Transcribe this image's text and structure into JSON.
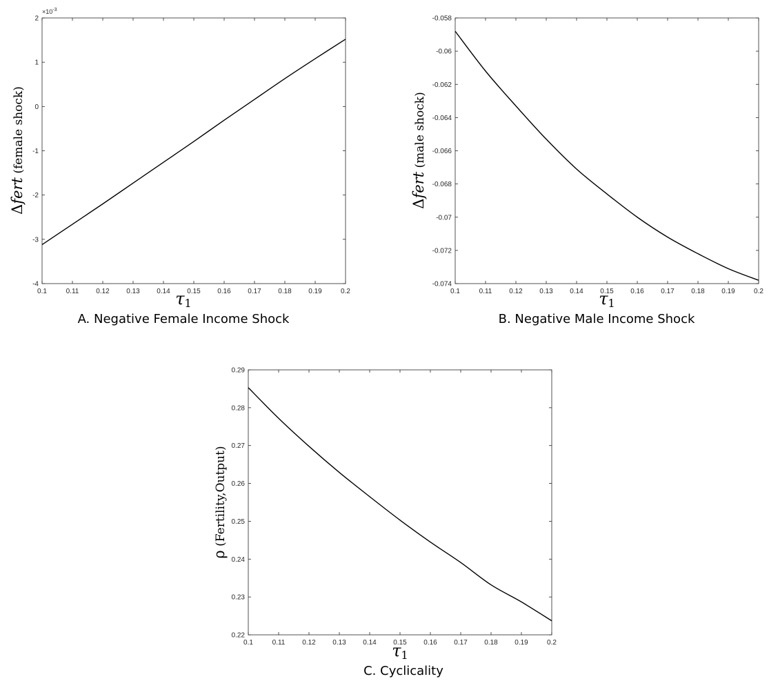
{
  "chart_data": [
    {
      "id": "A",
      "type": "line",
      "caption": "A. Negative Female Income Shock",
      "ylabel_symbol": "Δ",
      "ylabel_var": "fert",
      "ylabel_text": " (female shock)",
      "xlabel_symbol": "τ",
      "xlabel_sub": "1",
      "y_multiplier": "×10",
      "y_multiplier_exp": "-3",
      "xlim": [
        0.1,
        0.2
      ],
      "ylim": [
        -4,
        2
      ],
      "xticks": [
        0.1,
        0.11,
        0.12,
        0.13,
        0.14,
        0.15,
        0.16,
        0.17,
        0.18,
        0.19,
        0.2
      ],
      "xtick_labels": [
        "0.1",
        "0.11",
        "0.12",
        "0.13",
        "0.14",
        "0.15",
        "0.16",
        "0.17",
        "0.18",
        "0.19",
        "0.2"
      ],
      "yticks": [
        -4,
        -3,
        -2,
        -1,
        0,
        1,
        2
      ],
      "ytick_labels": [
        "-4",
        "-3",
        "-2",
        "-1",
        "0",
        "1",
        "2"
      ],
      "x": [
        0.1,
        0.11,
        0.12,
        0.13,
        0.14,
        0.15,
        0.16,
        0.17,
        0.18,
        0.19,
        0.2
      ],
      "y": [
        -3.12,
        -2.66,
        -2.2,
        -1.73,
        -1.26,
        -0.79,
        -0.31,
        0.16,
        0.63,
        1.08,
        1.52
      ],
      "color": "#000000"
    },
    {
      "id": "B",
      "type": "line",
      "caption": "B. Negative Male Income Shock",
      "ylabel_symbol": "Δ",
      "ylabel_var": "fert",
      "ylabel_text": " (male shock)",
      "xlabel_symbol": "τ",
      "xlabel_sub": "1",
      "xlim": [
        0.1,
        0.2
      ],
      "ylim": [
        -0.074,
        -0.058
      ],
      "xticks": [
        0.1,
        0.11,
        0.12,
        0.13,
        0.14,
        0.15,
        0.16,
        0.17,
        0.18,
        0.19,
        0.2
      ],
      "xtick_labels": [
        "0.1",
        "0.11",
        "0.12",
        "0.13",
        "0.14",
        "0.15",
        "0.16",
        "0.17",
        "0.18",
        "0.19",
        "0.2"
      ],
      "yticks": [
        -0.074,
        -0.072,
        -0.07,
        -0.068,
        -0.066,
        -0.064,
        -0.062,
        -0.06,
        -0.058
      ],
      "ytick_labels": [
        "-0.074",
        "-0.072",
        "-0.07",
        "-0.068",
        "-0.066",
        "-0.064",
        "-0.062",
        "-0.06",
        "-0.058"
      ],
      "x": [
        0.1,
        0.11,
        0.12,
        0.13,
        0.14,
        0.15,
        0.16,
        0.17,
        0.18,
        0.19,
        0.2
      ],
      "y": [
        -0.0588,
        -0.0612,
        -0.0633,
        -0.0653,
        -0.0671,
        -0.0686,
        -0.07,
        -0.0712,
        -0.0722,
        -0.0731,
        -0.0738
      ],
      "color": "#000000"
    },
    {
      "id": "C",
      "type": "line",
      "caption": "C. Cyclicality",
      "ylabel_symbol": "ρ",
      "ylabel_text": " (Fertility,Output)",
      "xlabel_symbol": "τ",
      "xlabel_sub": "1",
      "xlim": [
        0.1,
        0.2
      ],
      "ylim": [
        0.22,
        0.29
      ],
      "xticks": [
        0.1,
        0.11,
        0.12,
        0.13,
        0.14,
        0.15,
        0.16,
        0.17,
        0.18,
        0.19,
        0.2
      ],
      "xtick_labels": [
        "0.1",
        "0.11",
        "0.12",
        "0.13",
        "0.14",
        "0.15",
        "0.16",
        "0.17",
        "0.18",
        "0.19",
        "0.2"
      ],
      "yticks": [
        0.22,
        0.23,
        0.24,
        0.25,
        0.26,
        0.27,
        0.28,
        0.29
      ],
      "ytick_labels": [
        "0.22",
        "0.23",
        "0.24",
        "0.25",
        "0.26",
        "0.27",
        "0.28",
        "0.29"
      ],
      "x": [
        0.1,
        0.11,
        0.12,
        0.13,
        0.14,
        0.15,
        0.16,
        0.17,
        0.18,
        0.19,
        0.2
      ],
      "y": [
        0.2853,
        0.2772,
        0.2698,
        0.2629,
        0.2565,
        0.2503,
        0.2445,
        0.2391,
        0.2332,
        0.2287,
        0.2237
      ],
      "color": "#000000"
    }
  ]
}
